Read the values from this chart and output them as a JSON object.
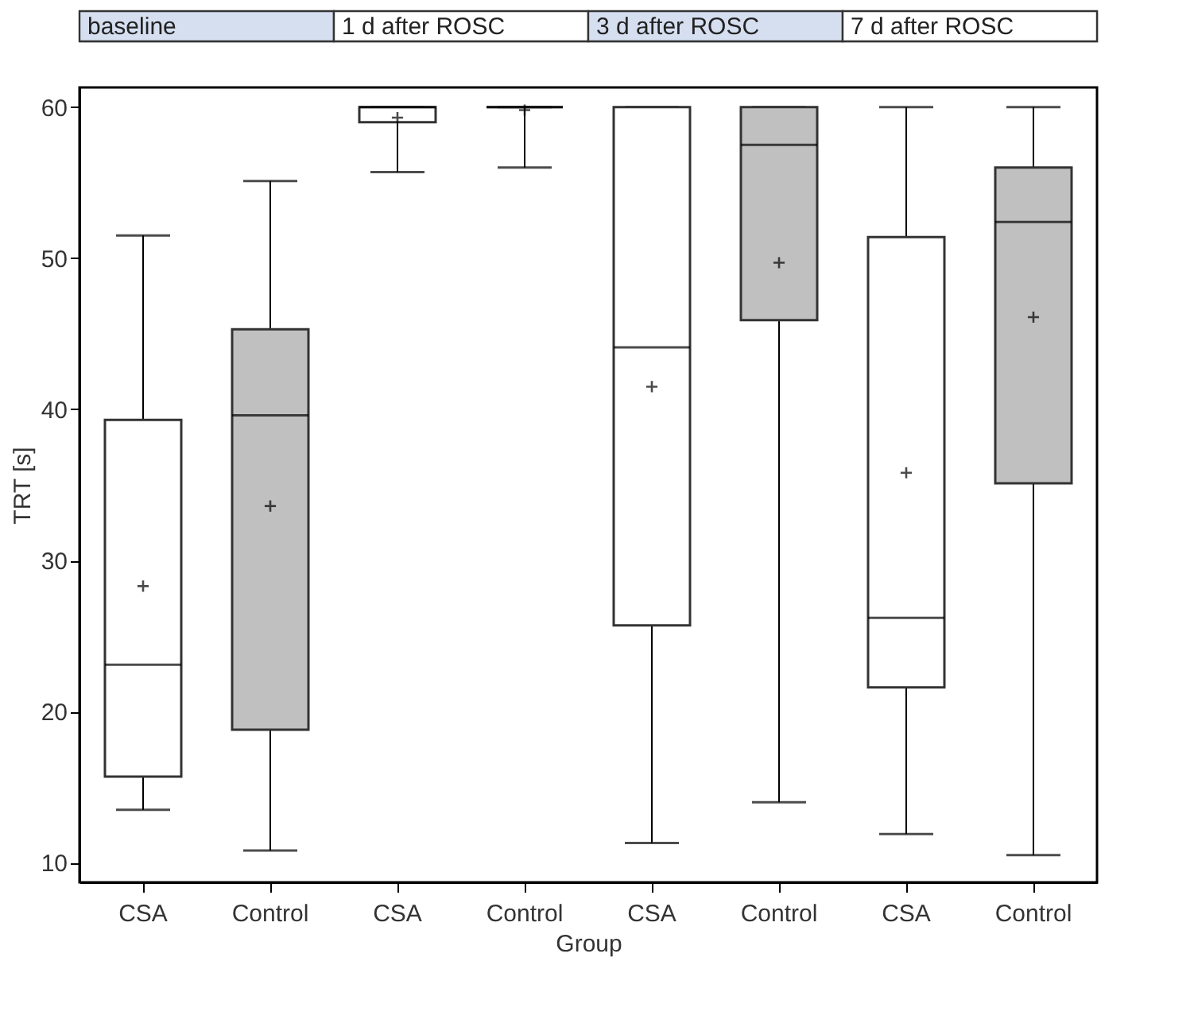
{
  "chart_data": {
    "type": "box",
    "xlabel": "Group",
    "ylabel": "TRT [s]",
    "categories": [
      "CSA",
      "Control",
      "CSA",
      "Control",
      "CSA",
      "Control",
      "CSA",
      "Control"
    ],
    "colors": [
      "#ffffff",
      "#c0c0c0",
      "#ffffff",
      "#000000",
      "#ffffff",
      "#c0c0c0",
      "#ffffff",
      "#c0c0c0"
    ],
    "boxes": [
      {
        "low": 13.5,
        "q1": 15.7,
        "median": 23.1,
        "q3": 39.3,
        "high": 51.5,
        "mean": 28.3
      },
      {
        "low": 10.8,
        "q1": 18.8,
        "median": 39.6,
        "q3": 45.3,
        "high": 55.1,
        "mean": 33.6
      },
      {
        "low": 55.7,
        "q1": 59,
        "median": 60,
        "q3": 60,
        "high": 60,
        "mean": 59.3
      },
      {
        "low": 56,
        "q1": 60,
        "median": 60,
        "q3": 60,
        "high": 60,
        "mean": 59.8
      },
      {
        "low": 11.3,
        "q1": 25.7,
        "median": 44.1,
        "q3": 60,
        "high": 60,
        "mean": 41.5
      },
      {
        "low": 14,
        "q1": 45.9,
        "median": 57.5,
        "q3": 60,
        "high": 60,
        "mean": 49.7
      },
      {
        "low": 11.9,
        "q1": 21.6,
        "median": 26.2,
        "q3": 51.4,
        "high": 60,
        "mean": 35.8
      },
      {
        "low": 10.5,
        "q1": 35.1,
        "median": 52.4,
        "q3": 56,
        "high": 60,
        "mean": 46.1
      }
    ],
    "annotations": [
      "baseline",
      "1 d after ROSC",
      "3 d after ROSC",
      "7 d after ROSC"
    ],
    "ylim": [
      8.7,
      61.3
    ],
    "yticks": [
      10,
      20,
      30,
      40,
      50,
      60
    ],
    "grid": false
  }
}
